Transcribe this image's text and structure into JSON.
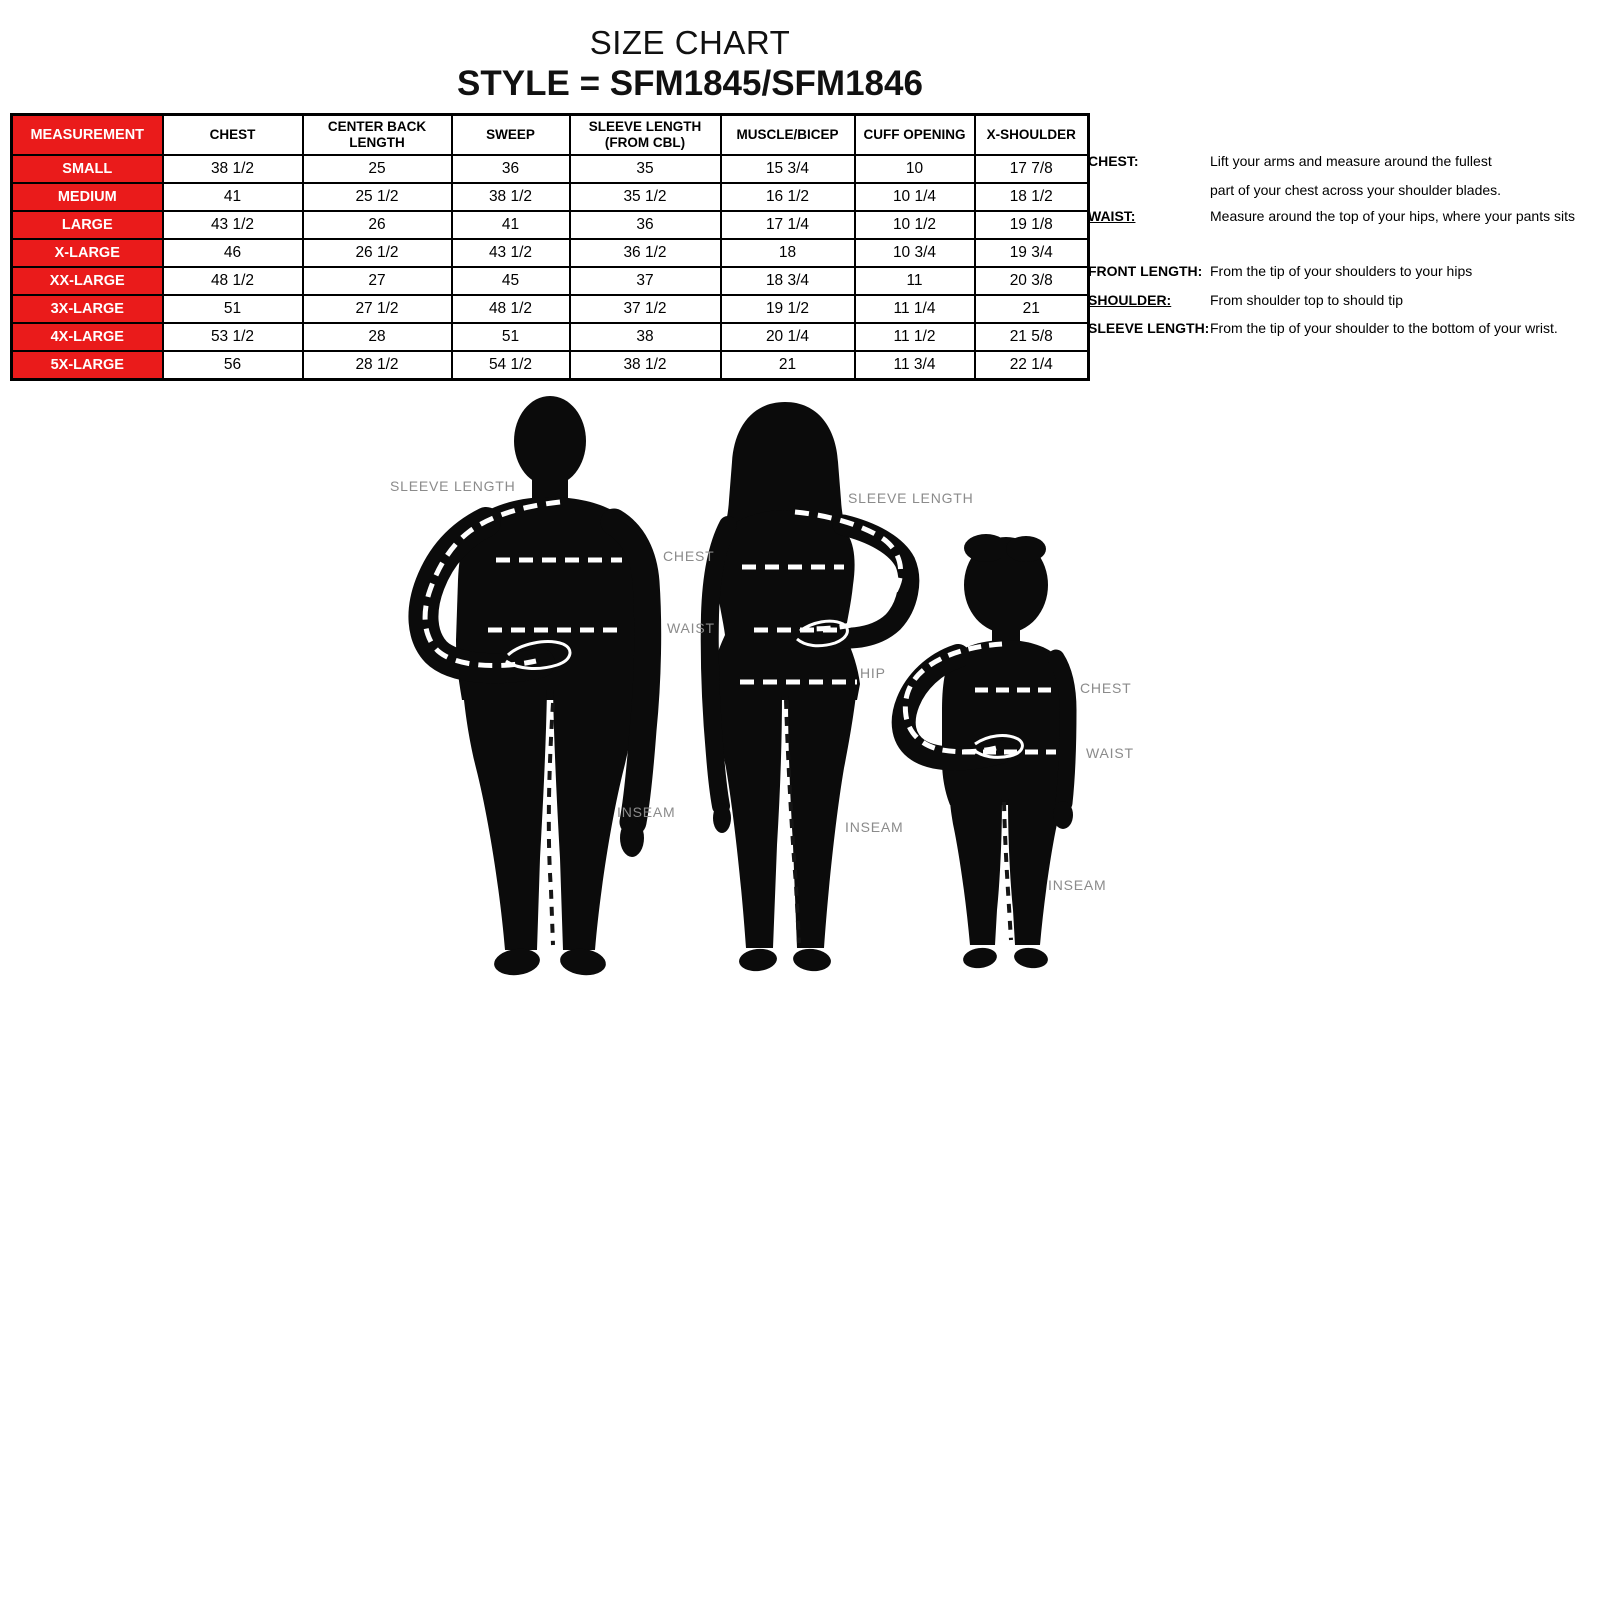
{
  "title": "SIZE CHART",
  "subtitle": "STYLE = SFM1845/SFM1846",
  "colors": {
    "header_red": "#ea1b1b",
    "label_gray": "#8b8b8b",
    "silhouette_black": "#0b0b0b",
    "border_black": "#000000"
  },
  "size_table": {
    "columns": [
      "MEASUREMENT",
      "CHEST",
      "CENTER BACK LENGTH",
      "SWEEP",
      "SLEEVE LENGTH\n(FROM CBL)",
      "MUSCLE/BICEP",
      "CUFF OPENING",
      "X-SHOULDER"
    ],
    "rows": [
      {
        "size": "SMALL",
        "values": [
          "38 1/2",
          "25",
          "36",
          "35",
          "15 3/4",
          "10",
          "17 7/8"
        ]
      },
      {
        "size": "MEDIUM",
        "values": [
          "41",
          "25 1/2",
          "38 1/2",
          "35 1/2",
          "16 1/2",
          "10 1/4",
          "18 1/2"
        ]
      },
      {
        "size": "LARGE",
        "values": [
          "43 1/2",
          "26",
          "41",
          "36",
          "17 1/4",
          "10 1/2",
          "19 1/8"
        ]
      },
      {
        "size": "X-LARGE",
        "values": [
          "46",
          "26 1/2",
          "43 1/2",
          "36 1/2",
          "18",
          "10 3/4",
          "19 3/4"
        ]
      },
      {
        "size": "XX-LARGE",
        "values": [
          "48 1/2",
          "27",
          "45",
          "37",
          "18 3/4",
          "11",
          "20 3/8"
        ]
      },
      {
        "size": "3X-LARGE",
        "values": [
          "51",
          "27 1/2",
          "48 1/2",
          "37 1/2",
          "19 1/2",
          "11 1/4",
          "21"
        ]
      },
      {
        "size": "4X-LARGE",
        "values": [
          "53 1/2",
          "28",
          "51",
          "38",
          "20 1/4",
          "11 1/2",
          "21 5/8"
        ]
      },
      {
        "size": "5X-LARGE",
        "values": [
          "56",
          "28 1/2",
          "54 1/2",
          "38 1/2",
          "21",
          "11 3/4",
          "22 1/4"
        ]
      }
    ]
  },
  "instructions": [
    {
      "label": "CHEST:",
      "text": "Lift your arms and measure around the fullest"
    },
    {
      "label": "",
      "text": "part of your chest across your shoulder blades."
    },
    {
      "label": "WAIST:",
      "text": "Measure around the top of your hips, where your pants sits"
    },
    {
      "label": "FRONT LENGTH:",
      "text": "From the tip of your shoulders to your hips"
    },
    {
      "label": "SHOULDER:",
      "text": "From shoulder top to should tip"
    },
    {
      "label": "SLEEVE LENGTH:",
      "text": "From the tip of your shoulder to the bottom of your wrist."
    }
  ],
  "figure_labels": [
    {
      "id": "man-sleeve-length",
      "text": "SLEEVE LENGTH"
    },
    {
      "id": "chest",
      "text": "CHEST"
    },
    {
      "id": "waist",
      "text": "WAIST"
    },
    {
      "id": "woman-sleeve-length",
      "text": "SLEEVE LENGTH"
    },
    {
      "id": "woman-hip",
      "text": "HIP"
    },
    {
      "id": "man-inseam",
      "text": "INSEAM"
    },
    {
      "id": "woman-inseam",
      "text": "INSEAM"
    },
    {
      "id": "child-chest",
      "text": "CHEST"
    },
    {
      "id": "child-waist",
      "text": "WAIST"
    },
    {
      "id": "child-inseam",
      "text": "INSEAM"
    }
  ]
}
